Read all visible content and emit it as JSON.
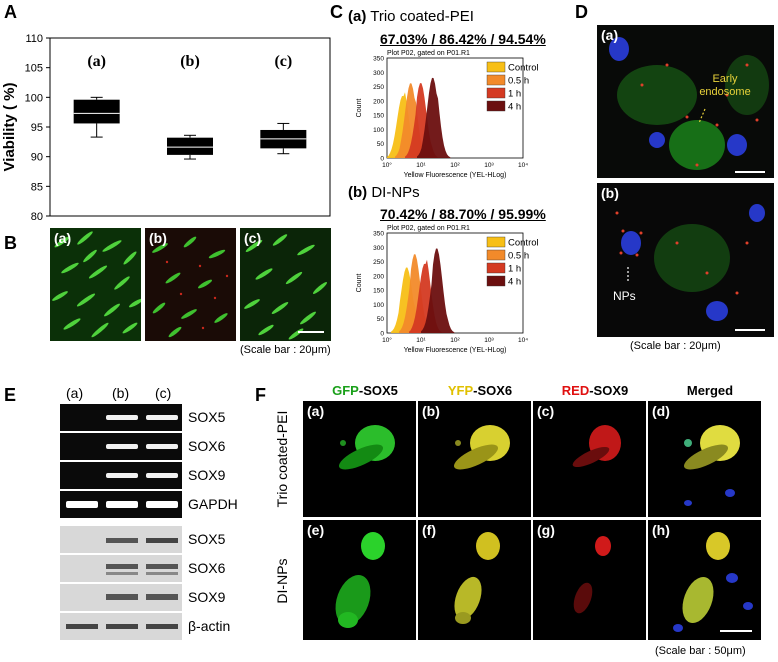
{
  "panels": {
    "A": "A",
    "B": "B",
    "C": "C",
    "D": "D",
    "E": "E",
    "F": "F"
  },
  "panelA": {
    "ylabel": "Viability ( %)",
    "yticks": [
      "110",
      "105",
      "100",
      "95",
      "90",
      "85",
      "80"
    ],
    "group_labels": [
      "(a)",
      "(b)",
      "(c)"
    ]
  },
  "chart_data": {
    "type": "box",
    "categories": [
      "(a)",
      "(b)",
      "(c)"
    ],
    "ylabel": "Viability ( %)",
    "ylim": [
      80,
      110
    ],
    "boxes": [
      {
        "min": 93.3,
        "q1": 95.6,
        "median": 97.3,
        "q3": 99.6,
        "max": 100.0
      },
      {
        "min": 89.6,
        "q1": 90.3,
        "median": 91.6,
        "q3": 93.2,
        "max": 93.6
      },
      {
        "min": 90.5,
        "q1": 91.4,
        "median": 93.0,
        "q3": 94.5,
        "max": 95.6
      }
    ]
  },
  "panelB": {
    "tags": [
      "(a)",
      "(b)",
      "(c)"
    ],
    "scale": "(Scale bar : 20μm)"
  },
  "panelC": {
    "a_title": "(a)",
    "a_name": "Trio coated-PEI",
    "a_percent": "67.03% / 86.42% / 94.54%",
    "b_title": "(b)",
    "b_name": "DI-NPs",
    "b_percent": "70.42% / 88.70% / 95.99%",
    "plot_caption": "Plot P02, gated on P01.R1",
    "yaxis": "Count",
    "xaxis": "Yellow Fluorescence (YEL-HLog)",
    "yticks": [
      "350",
      "300",
      "250",
      "200",
      "150",
      "100",
      "50",
      "0"
    ],
    "xticks": [
      "10°",
      "10¹",
      "10²",
      "10³",
      "10⁴"
    ],
    "legend": [
      "Control",
      "0.5 h",
      "1 h",
      "4 h"
    ],
    "legend_colors": [
      "#f7bf16",
      "#f28a2a",
      "#d43a22",
      "#6b0f0f"
    ]
  },
  "panelD": {
    "a_tag": "(a)",
    "b_tag": "(b)",
    "endosome": "Early endosome",
    "nps": "NPs",
    "scale": "(Scale bar : 20μm)"
  },
  "panelE": {
    "lanes": [
      "(a)",
      "(b)",
      "(c)"
    ],
    "rt_labels": [
      "SOX5",
      "SOX6",
      "SOX9",
      "GAPDH"
    ],
    "wb_labels": [
      "SOX5",
      "SOX6",
      "SOX9",
      "β-actin"
    ]
  },
  "panelF": {
    "headers": [
      {
        "prefix": "GFP",
        "suffix": "-SOX5",
        "color": "#1aa01a"
      },
      {
        "prefix": "YFP",
        "suffix": "-SOX6",
        "color": "#e0c000"
      },
      {
        "prefix": "RED",
        "suffix": "-SOX9",
        "color": "#e01010"
      },
      {
        "prefix": "",
        "suffix": "Merged",
        "color": "#000000"
      }
    ],
    "row1": "Trio coated-PEI",
    "row2": "DI-NPs",
    "tags": [
      "(a)",
      "(b)",
      "(c)",
      "(d)",
      "(e)",
      "(f)",
      "(g)",
      "(h)"
    ],
    "scale": "(Scale bar : 50μm)"
  }
}
